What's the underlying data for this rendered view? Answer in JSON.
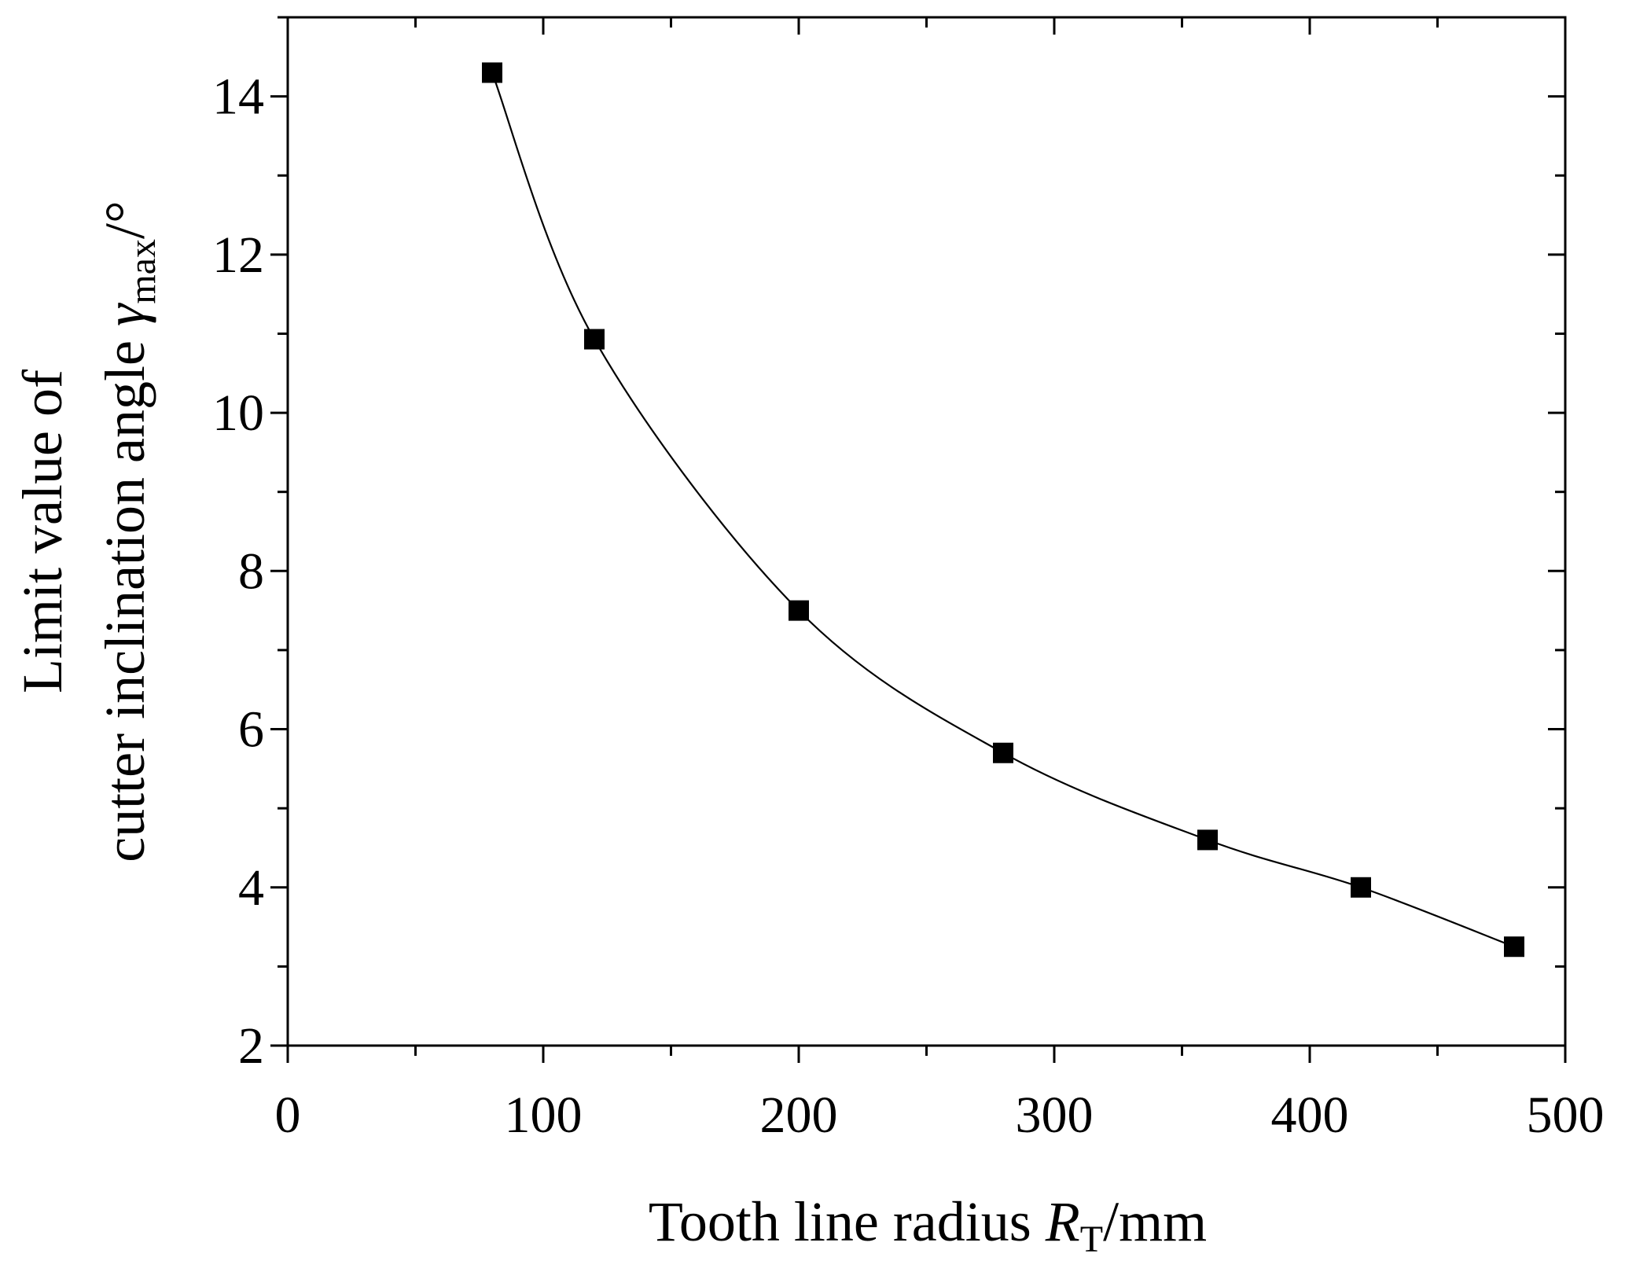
{
  "chart_data": {
    "type": "line",
    "x": [
      80,
      120,
      200,
      280,
      360,
      420,
      480
    ],
    "series": [
      {
        "values": [
          14.3,
          10.93,
          7.5,
          5.7,
          4.6,
          4.0,
          3.25
        ]
      }
    ],
    "xlim": [
      0,
      500
    ],
    "ylim": [
      2,
      15
    ],
    "xticks": [
      0,
      100,
      200,
      300,
      400,
      500
    ],
    "yticks": [
      2,
      4,
      6,
      8,
      10,
      12,
      14
    ],
    "xtick_labels": [
      "0",
      "100",
      "200",
      "300",
      "400",
      "500"
    ],
    "ytick_labels": [
      "2",
      "4",
      "6",
      "8",
      "10",
      "12",
      "14"
    ],
    "xlabel": {
      "main": "Tooth line radius ",
      "symbol": "R",
      "sub": "T",
      "unit": "/mm"
    },
    "ylabel": {
      "line1": "Limit value of",
      "line2_main": "cutter inclination angle ",
      "symbol": "γ",
      "sub": "max",
      "unit": "/°"
    },
    "marker": "square",
    "line_style": "smooth",
    "grid": false,
    "legend": "none",
    "colors": {
      "line": "#000000",
      "marker": "#000000"
    }
  }
}
